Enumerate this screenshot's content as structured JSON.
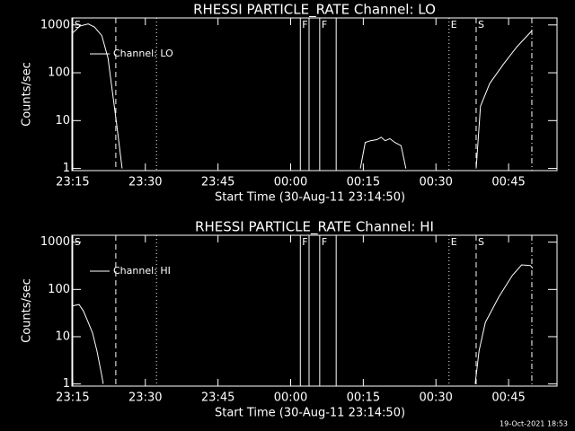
{
  "chart_data": [
    {
      "type": "line",
      "title": "RHESSI PARTICLE_RATE Channel: LO",
      "ylabel": "Counts/sec",
      "xlabel": "Start Time (30-Aug-11 23:14:50)",
      "log_y": true,
      "xlim": [
        -0.17,
        100
      ],
      "ylim": [
        0.9,
        1400
      ],
      "xticks": [
        {
          "value": 0,
          "label": "23:15"
        },
        {
          "value": 15,
          "label": "23:30"
        },
        {
          "value": 30,
          "label": "23:45"
        },
        {
          "value": 45,
          "label": "00:00"
        },
        {
          "value": 60,
          "label": "00:15"
        },
        {
          "value": 75,
          "label": "00:30"
        },
        {
          "value": 90,
          "label": "00:45"
        }
      ],
      "yticks": [
        1,
        10,
        100,
        1000
      ],
      "series": [
        {
          "name": "Channel: LO",
          "color": "#ffffff",
          "x": [
            0,
            1.5,
            3.2,
            4.5,
            6,
            7.3,
            8.2,
            9.1,
            10.2,
            null,
            59.4,
            60.4,
            61.5,
            62.8,
            63.7,
            64.5,
            65.5,
            66.5,
            67.8,
            68.8,
            null,
            83.3,
            84.2,
            86.1,
            88.9,
            91.7,
            94.5,
            94.8
          ],
          "values": [
            680,
            950,
            1050,
            900,
            600,
            200,
            40,
            8,
            1,
            null,
            1,
            3.5,
            3.8,
            4,
            4.5,
            3.8,
            4.2,
            3.5,
            3,
            1,
            null,
            1,
            20,
            60,
            150,
            350,
            700,
            750
          ]
        }
      ],
      "markers": [
        {
          "x": 0,
          "style": "solid",
          "label": "S"
        },
        {
          "x": 8.9,
          "style": "dashed"
        },
        {
          "x": 17.3,
          "style": "dotted"
        },
        {
          "x": 47,
          "style": "solid",
          "label": "F"
        },
        {
          "x": 48.8,
          "style": "solid"
        },
        {
          "x": 51,
          "style": "solid",
          "label": "F"
        },
        {
          "x": 54.4,
          "style": "solid"
        },
        {
          "x": 77.7,
          "style": "dotted",
          "label": "E"
        },
        {
          "x": 83.3,
          "style": "dashed",
          "label": "S"
        },
        {
          "x": 94.8,
          "style": "dashdot"
        }
      ]
    },
    {
      "type": "line",
      "title": "RHESSI PARTICLE_RATE Channel: HI",
      "ylabel": "Counts/sec",
      "xlabel": "Start Time (30-Aug-11 23:14:50)",
      "log_y": true,
      "xlim": [
        -0.17,
        100
      ],
      "ylim": [
        0.9,
        1400
      ],
      "xticks": [
        {
          "value": 0,
          "label": "23:15"
        },
        {
          "value": 15,
          "label": "23:30"
        },
        {
          "value": 30,
          "label": "23:45"
        },
        {
          "value": 45,
          "label": "00:00"
        },
        {
          "value": 60,
          "label": "00:15"
        },
        {
          "value": 75,
          "label": "00:30"
        },
        {
          "value": 90,
          "label": "00:45"
        }
      ],
      "yticks": [
        1,
        10,
        100,
        1000
      ],
      "series": [
        {
          "name": "Channel: HI",
          "color": "#ffffff",
          "x": [
            0,
            1.3,
            2.2,
            3.2,
            4.1,
            5,
            6,
            6.3,
            null,
            83.1,
            83.9,
            85.2,
            88,
            90.8,
            92.7,
            94.5,
            95
          ],
          "values": [
            45,
            48,
            35,
            20,
            12,
            5,
            1.5,
            1,
            null,
            1,
            5,
            20,
            70,
            200,
            330,
            320,
            280
          ]
        }
      ],
      "markers": [
        {
          "x": 0,
          "style": "solid",
          "label": "S"
        },
        {
          "x": 8.9,
          "style": "dashed"
        },
        {
          "x": 17.3,
          "style": "dotted"
        },
        {
          "x": 47,
          "style": "solid",
          "label": "F"
        },
        {
          "x": 48.8,
          "style": "solid"
        },
        {
          "x": 51,
          "style": "solid",
          "label": "F"
        },
        {
          "x": 54.4,
          "style": "solid"
        },
        {
          "x": 77.7,
          "style": "dotted",
          "label": "E"
        },
        {
          "x": 83.3,
          "style": "dashed",
          "label": "S"
        },
        {
          "x": 94.8,
          "style": "dashdot"
        }
      ]
    }
  ],
  "footer": "19-Oct-2021 18:53"
}
